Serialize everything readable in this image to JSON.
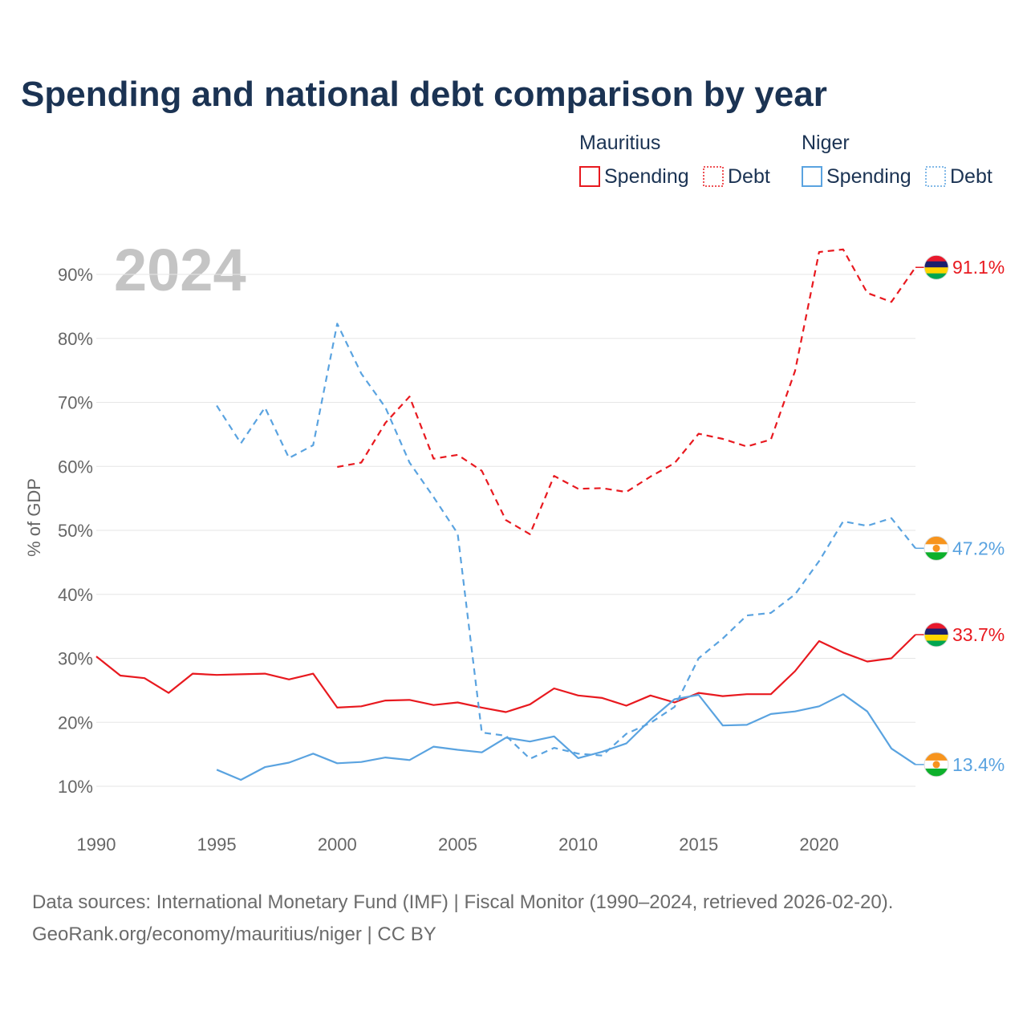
{
  "title": "Spending and national debt comparison by year",
  "year_watermark": "2024",
  "legend": {
    "groups": [
      {
        "country": "Mauritius",
        "color": "#e8191f",
        "items": [
          {
            "label": "Spending",
            "style": "solid"
          },
          {
            "label": "Debt",
            "style": "dotted"
          }
        ]
      },
      {
        "country": "Niger",
        "color": "#5aa3e0",
        "items": [
          {
            "label": "Spending",
            "style": "solid"
          },
          {
            "label": "Debt",
            "style": "dotted"
          }
        ]
      }
    ]
  },
  "footer": {
    "line1": "Data sources: International Monetary Fund (IMF) | Fiscal Monitor (1990–2024, retrieved 2026-02-20).",
    "line2": "GeoRank.org/economy/mauritius/niger | CC BY"
  },
  "chart_data": {
    "type": "line",
    "title": "Spending and national debt comparison by year",
    "xlabel": "",
    "ylabel": "% of GDP",
    "xlim": [
      1990,
      2024
    ],
    "ylim": [
      5,
      95
    ],
    "x_ticks": [
      1990,
      1995,
      2000,
      2005,
      2010,
      2015,
      2020
    ],
    "x_tick_labels": [
      "1990",
      "1995",
      "2000",
      "2005",
      "2010",
      "2015",
      "2020"
    ],
    "y_ticks": [
      10,
      20,
      30,
      40,
      50,
      60,
      70,
      80,
      90
    ],
    "y_tick_labels": [
      "10%",
      "20%",
      "30%",
      "40%",
      "50%",
      "60%",
      "70%",
      "80%",
      "90%"
    ],
    "grid": true,
    "series": [
      {
        "name": "Mauritius Spending",
        "country": "Mauritius",
        "color": "#e8191f",
        "dash": "solid",
        "x": [
          1990,
          1991,
          1992,
          1993,
          1994,
          1995,
          1996,
          1997,
          1998,
          1999,
          2000,
          2001,
          2002,
          2003,
          2004,
          2005,
          2006,
          2007,
          2008,
          2009,
          2010,
          2011,
          2012,
          2013,
          2014,
          2015,
          2016,
          2017,
          2018,
          2019,
          2020,
          2021,
          2022,
          2023,
          2024
        ],
        "values": [
          30.3,
          27.3,
          26.9,
          24.6,
          27.6,
          27.4,
          27.5,
          27.6,
          26.7,
          27.6,
          22.3,
          22.5,
          23.4,
          23.5,
          22.7,
          23.1,
          22.3,
          21.6,
          22.8,
          25.3,
          24.2,
          23.8,
          22.6,
          24.2,
          23.1,
          24.6,
          24.1,
          24.4,
          24.4,
          28.0,
          32.7,
          30.9,
          29.5,
          30.0,
          33.7
        ],
        "end_label": "33.7%"
      },
      {
        "name": "Mauritius Debt",
        "country": "Mauritius",
        "color": "#e8191f",
        "dash": "dashed",
        "x": [
          2000,
          2001,
          2002,
          2003,
          2004,
          2005,
          2006,
          2007,
          2008,
          2009,
          2010,
          2011,
          2012,
          2013,
          2014,
          2015,
          2016,
          2017,
          2018,
          2019,
          2020,
          2021,
          2022,
          2023,
          2024
        ],
        "values": [
          59.9,
          60.6,
          66.8,
          70.9,
          61.2,
          61.8,
          59.3,
          51.6,
          49.4,
          58.5,
          56.5,
          56.6,
          56.0,
          58.4,
          60.5,
          65.1,
          64.3,
          63.1,
          64.2,
          74.9,
          93.5,
          93.9,
          87.1,
          85.7,
          91.1
        ],
        "end_label": "91.1%"
      },
      {
        "name": "Niger Spending",
        "country": "Niger",
        "color": "#5aa3e0",
        "dash": "solid",
        "x": [
          1995,
          1996,
          1997,
          1998,
          1999,
          2000,
          2001,
          2002,
          2003,
          2004,
          2005,
          2006,
          2007,
          2008,
          2009,
          2010,
          2011,
          2012,
          2013,
          2014,
          2015,
          2016,
          2017,
          2018,
          2019,
          2020,
          2021,
          2022,
          2023,
          2024
        ],
        "values": [
          12.6,
          11.0,
          13.0,
          13.7,
          15.1,
          13.6,
          13.8,
          14.5,
          14.1,
          16.2,
          15.7,
          15.3,
          17.6,
          17.0,
          17.8,
          14.4,
          15.4,
          16.7,
          20.4,
          23.6,
          24.3,
          19.5,
          19.6,
          21.3,
          21.7,
          22.5,
          24.4,
          21.7,
          15.9,
          13.4
        ],
        "end_label": "13.4%"
      },
      {
        "name": "Niger Debt",
        "country": "Niger",
        "color": "#5aa3e0",
        "dash": "dashed",
        "x": [
          1995,
          1996,
          1997,
          1998,
          1999,
          2000,
          2001,
          2002,
          2003,
          2004,
          2005,
          2006,
          2007,
          2008,
          2009,
          2010,
          2011,
          2012,
          2013,
          2014,
          2015,
          2016,
          2017,
          2018,
          2019,
          2020,
          2021,
          2022,
          2023,
          2024
        ],
        "values": [
          69.5,
          63.6,
          69.2,
          61.3,
          63.3,
          82.3,
          74.5,
          69.2,
          60.6,
          55.2,
          49.5,
          18.4,
          17.9,
          14.3,
          16.0,
          15.1,
          14.8,
          18.2,
          19.9,
          22.4,
          30.0,
          33.1,
          36.7,
          37.1,
          40.0,
          45.2,
          51.4,
          50.7,
          51.9,
          47.2
        ],
        "end_label": "47.2%"
      }
    ]
  }
}
